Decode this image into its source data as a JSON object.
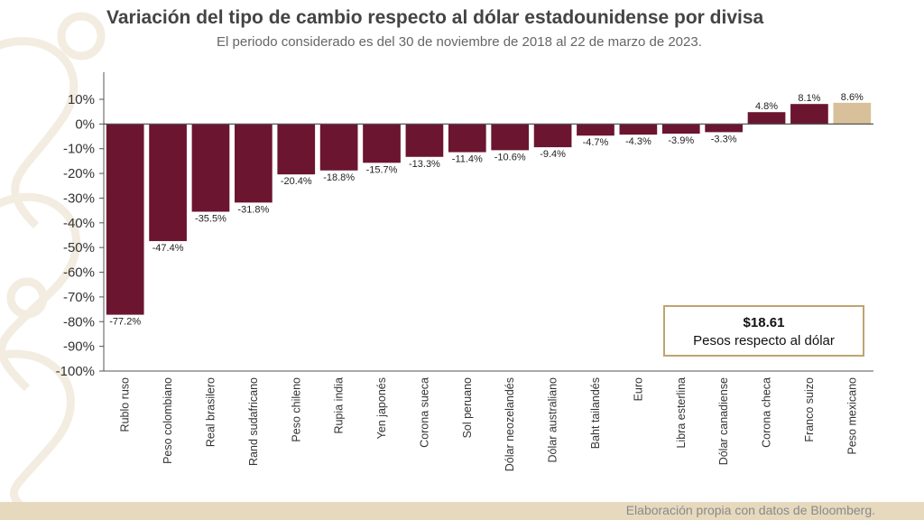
{
  "chart_data": {
    "type": "bar",
    "title": "Variación del tipo de cambio respecto al dólar estadounidense por divisa",
    "subtitle": "El periodo considerado es del 30 de noviembre de 2018 al 22 de marzo de 2023.",
    "categories": [
      "Rublo ruso",
      "Peso colombiano",
      "Real brasilero",
      "Rand sudafricano",
      "Peso chileno",
      "Rupia india",
      "Yen japonés",
      "Corona sueca",
      "Sol peruano",
      "Dólar neozelandés",
      "Dólar australiano",
      "Baht tailandés",
      "Euro",
      "Libra esterlina",
      "Dólar canadiense",
      "Corona checa",
      "Franco suizo",
      "Peso mexicano"
    ],
    "values": [
      -77.2,
      -47.4,
      -35.5,
      -31.8,
      -20.4,
      -18.8,
      -15.7,
      -13.3,
      -11.4,
      -10.6,
      -9.4,
      -4.7,
      -4.3,
      -3.9,
      -3.3,
      4.8,
      8.1,
      8.6
    ],
    "data_labels": [
      "-77.2%",
      "-47.4%",
      "-35.5%",
      "-31.8%",
      "-20.4%",
      "-18.8%",
      "-15.7%",
      "-13.3%",
      "-11.4%",
      "-10.6%",
      "-9.4%",
      "-4.7%",
      "-4.3%",
      "-3.9%",
      "-3.3%",
      "4.8%",
      "8.1%",
      "8.6%"
    ],
    "ylim": [
      -100,
      10
    ],
    "yticks": [
      10,
      0,
      -10,
      -20,
      -30,
      -40,
      -50,
      -60,
      -70,
      -80,
      -90,
      -100
    ],
    "ytick_labels": [
      "10%",
      "0%",
      "-10%",
      "-20%",
      "-30%",
      "-40%",
      "-50%",
      "-60%",
      "-70%",
      "-80%",
      "-90%",
      "-100%"
    ],
    "xlabel": "",
    "ylabel": "",
    "grid": false,
    "colors": {
      "bar": "#6b1530",
      "highlight": "#d8c19a",
      "axis": "#555555"
    },
    "highlight_category": "Peso mexicano"
  },
  "info_box": {
    "value": "$18.61",
    "label": "Pesos respecto al dólar"
  },
  "footer": {
    "text": "Elaboración propia con datos de Bloomberg."
  }
}
